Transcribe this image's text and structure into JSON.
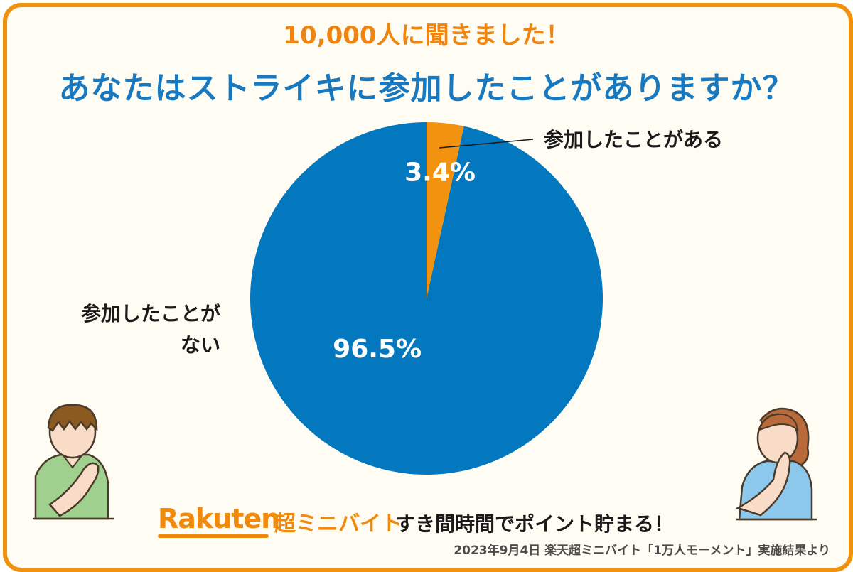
{
  "header": {
    "subtitle": "10,000人に聞きました！",
    "title": "あなたはストライキに参加したことがありますか？"
  },
  "chart_data": {
    "type": "pie",
    "title": "あなたはストライキに参加したことがありますか？",
    "slices": [
      {
        "label": "参加したことがある",
        "value": 3.4,
        "display": "3.4%",
        "color": "#f3920f"
      },
      {
        "label": "参加したことがない",
        "value": 96.5,
        "display": "96.5%",
        "color": "#0378be"
      }
    ],
    "start_angle_deg": 0,
    "direction": "clockwise",
    "legend": "none"
  },
  "labels": {
    "has_participated": "参加したことがある",
    "not_participated_line1": "参加したことが",
    "not_participated_line2": "ない"
  },
  "footer": {
    "brand": "Rakuten",
    "brand_sub": "超ミニバイト",
    "tagline": "すき間時間でポイント貯まる！",
    "source": "2023年9月4日 楽天超ミニバイト「1万人モーメント」実施結果より"
  }
}
